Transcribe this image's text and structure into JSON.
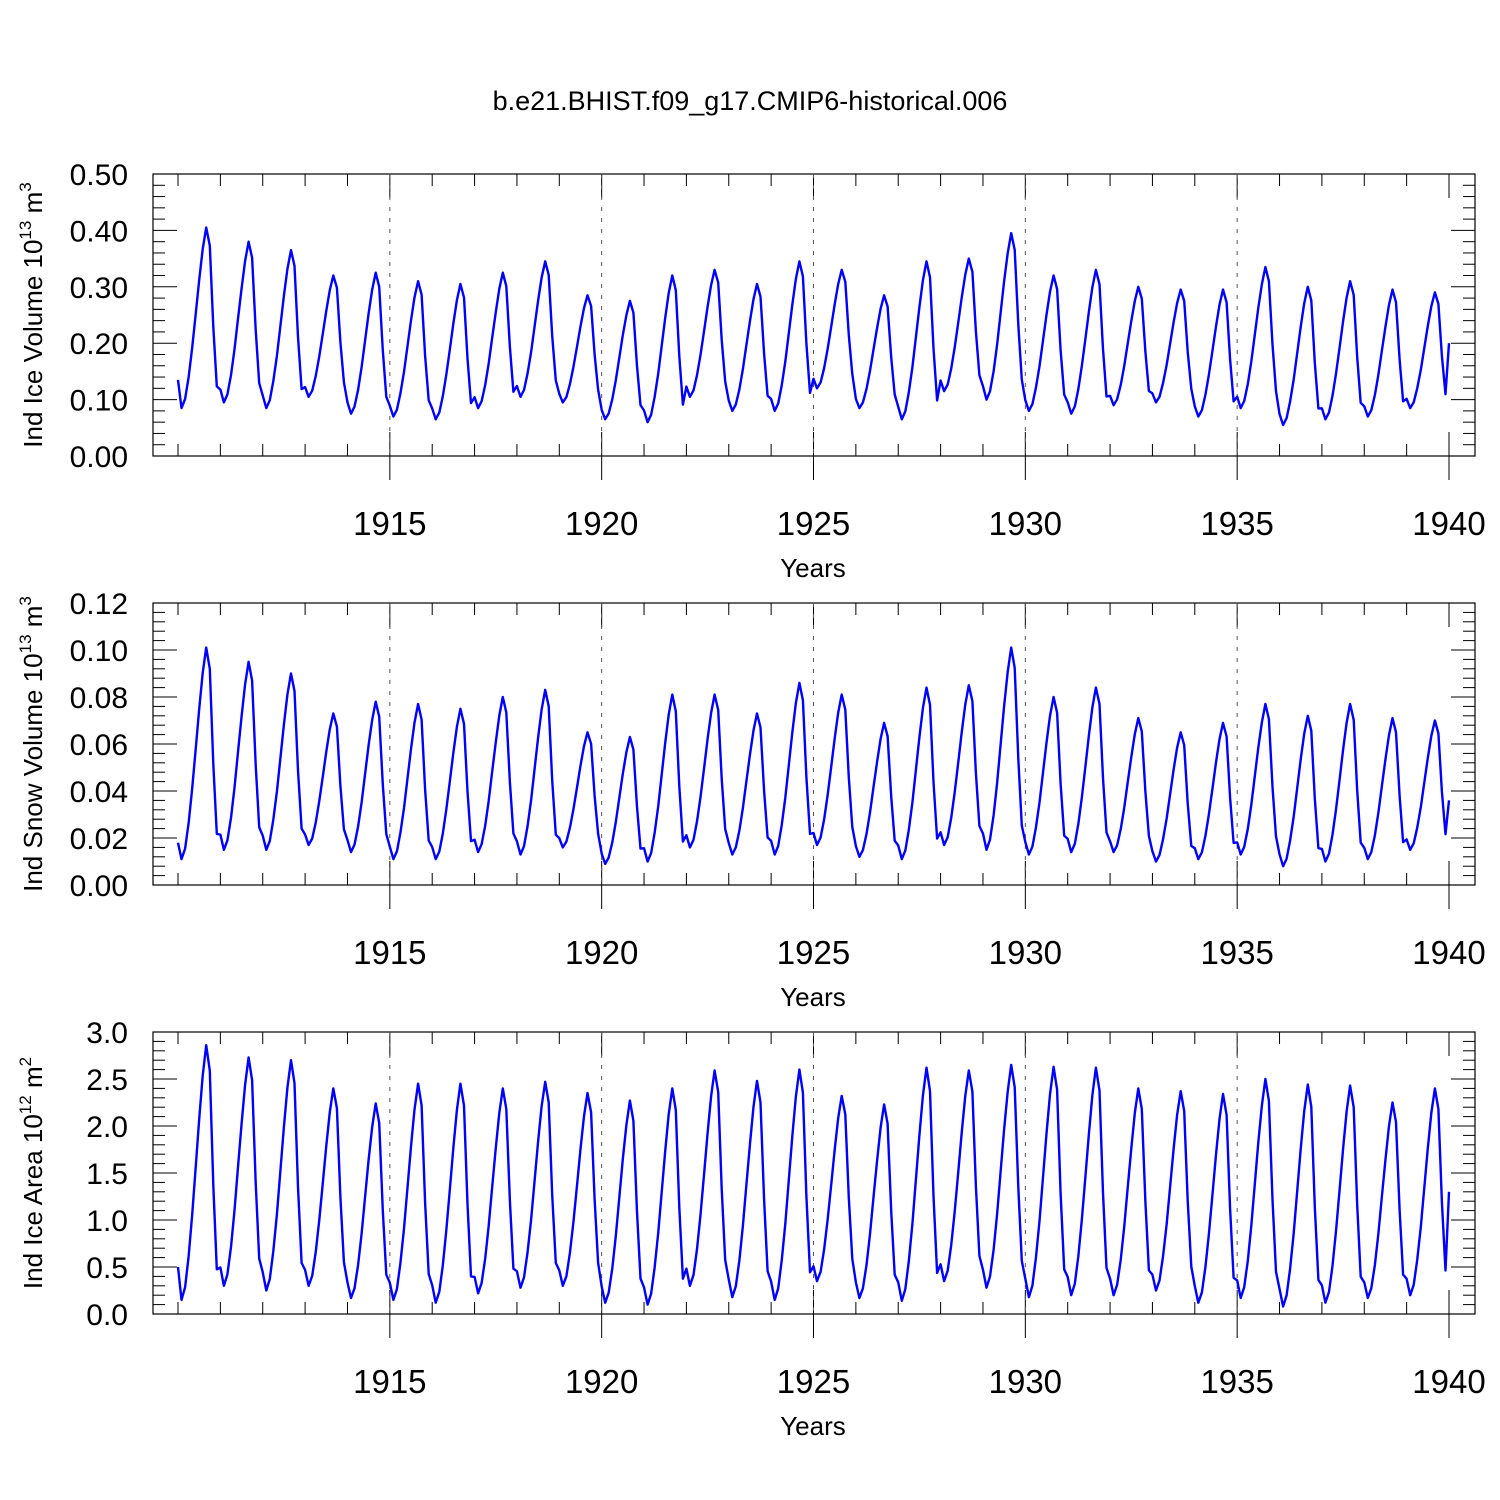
{
  "page": {
    "title": "b.e21.BHIST.f09_g17.CMIP6-historical.006"
  },
  "style": {
    "line_color": "#0000ff",
    "axis_color": "#000000",
    "grid_color": "#555555"
  },
  "chart_data": [
    {
      "type": "line",
      "title": "",
      "xlabel": "Years",
      "ylabel_base": "Ind Ice Volume 10",
      "ylabel_exp": "13",
      "ylabel_unit": "m",
      "ylabel_unit_exp": "3",
      "xlim": [
        1910,
        1940
      ],
      "ylim": [
        0.0,
        0.5
      ],
      "x_ticks": [
        "1915",
        "1920",
        "1925",
        "1930",
        "1935",
        "1940"
      ],
      "y_ticks": [
        "0.00",
        "0.10",
        "0.20",
        "0.30",
        "0.40",
        "0.50"
      ],
      "grid": "vertical dashed at 5-year ticks",
      "series": [
        {
          "min_values": [
            0.085,
            0.095,
            0.085,
            0.105,
            0.075,
            0.07,
            0.065,
            0.085,
            0.105,
            0.095,
            0.065,
            0.06,
            0.105,
            0.08,
            0.08,
            0.12,
            0.085,
            0.065,
            0.115,
            0.1,
            0.08,
            0.075,
            0.09,
            0.095,
            0.07,
            0.085,
            0.055,
            0.065,
            0.07,
            0.085
          ],
          "max_values": [
            0.405,
            0.38,
            0.365,
            0.32,
            0.325,
            0.31,
            0.305,
            0.325,
            0.345,
            0.285,
            0.275,
            0.32,
            0.33,
            0.305,
            0.345,
            0.33,
            0.285,
            0.345,
            0.35,
            0.395,
            0.32,
            0.33,
            0.3,
            0.295,
            0.295,
            0.335,
            0.3,
            0.31,
            0.295,
            0.29
          ],
          "start": 0.135,
          "end": 0.2
        }
      ]
    },
    {
      "type": "line",
      "title": "",
      "xlabel": "Years",
      "ylabel_base": "Ind Snow Volume 10",
      "ylabel_exp": "13",
      "ylabel_unit": "m",
      "ylabel_unit_exp": "3",
      "xlim": [
        1910,
        1940
      ],
      "ylim": [
        0.0,
        0.12
      ],
      "x_ticks": [
        "1915",
        "1920",
        "1925",
        "1930",
        "1935",
        "1940"
      ],
      "y_ticks": [
        "0.00",
        "0.02",
        "0.04",
        "0.06",
        "0.08",
        "0.10",
        "0.12"
      ],
      "grid": "vertical dashed at 5-year ticks",
      "series": [
        {
          "min_values": [
            0.011,
            0.015,
            0.015,
            0.017,
            0.014,
            0.011,
            0.011,
            0.014,
            0.013,
            0.016,
            0.009,
            0.01,
            0.016,
            0.013,
            0.013,
            0.017,
            0.012,
            0.011,
            0.017,
            0.015,
            0.013,
            0.014,
            0.014,
            0.01,
            0.011,
            0.013,
            0.008,
            0.01,
            0.011,
            0.015
          ],
          "max_values": [
            0.101,
            0.095,
            0.09,
            0.073,
            0.078,
            0.077,
            0.075,
            0.08,
            0.083,
            0.065,
            0.063,
            0.081,
            0.081,
            0.073,
            0.086,
            0.081,
            0.069,
            0.084,
            0.085,
            0.101,
            0.08,
            0.084,
            0.071,
            0.065,
            0.069,
            0.077,
            0.072,
            0.077,
            0.071,
            0.07
          ],
          "start": 0.018,
          "end": 0.036
        }
      ]
    },
    {
      "type": "line",
      "title": "",
      "xlabel": "Years",
      "ylabel_base": "Ind Ice Area 10",
      "ylabel_exp": "12",
      "ylabel_unit": "m",
      "ylabel_unit_exp": "2",
      "xlim": [
        1910,
        1940
      ],
      "ylim": [
        0.0,
        3.0
      ],
      "x_ticks": [
        "1915",
        "1920",
        "1925",
        "1930",
        "1935",
        "1940"
      ],
      "y_ticks": [
        "0.0",
        "0.5",
        "1.0",
        "1.5",
        "2.0",
        "2.5",
        "3.0"
      ],
      "grid": "vertical dashed at 5-year ticks",
      "series": [
        {
          "min_values": [
            0.15,
            0.3,
            0.25,
            0.3,
            0.17,
            0.15,
            0.12,
            0.22,
            0.28,
            0.3,
            0.12,
            0.1,
            0.3,
            0.18,
            0.15,
            0.35,
            0.17,
            0.14,
            0.35,
            0.28,
            0.18,
            0.2,
            0.2,
            0.25,
            0.12,
            0.17,
            0.08,
            0.12,
            0.17,
            0.2
          ],
          "max_values": [
            2.86,
            2.73,
            2.7,
            2.4,
            2.24,
            2.45,
            2.45,
            2.4,
            2.47,
            2.35,
            2.27,
            2.4,
            2.59,
            2.48,
            2.6,
            2.32,
            2.23,
            2.62,
            2.59,
            2.65,
            2.63,
            2.62,
            2.4,
            2.37,
            2.34,
            2.5,
            2.44,
            2.43,
            2.25,
            2.4
          ],
          "start": 0.5,
          "end": 1.3
        }
      ]
    }
  ]
}
